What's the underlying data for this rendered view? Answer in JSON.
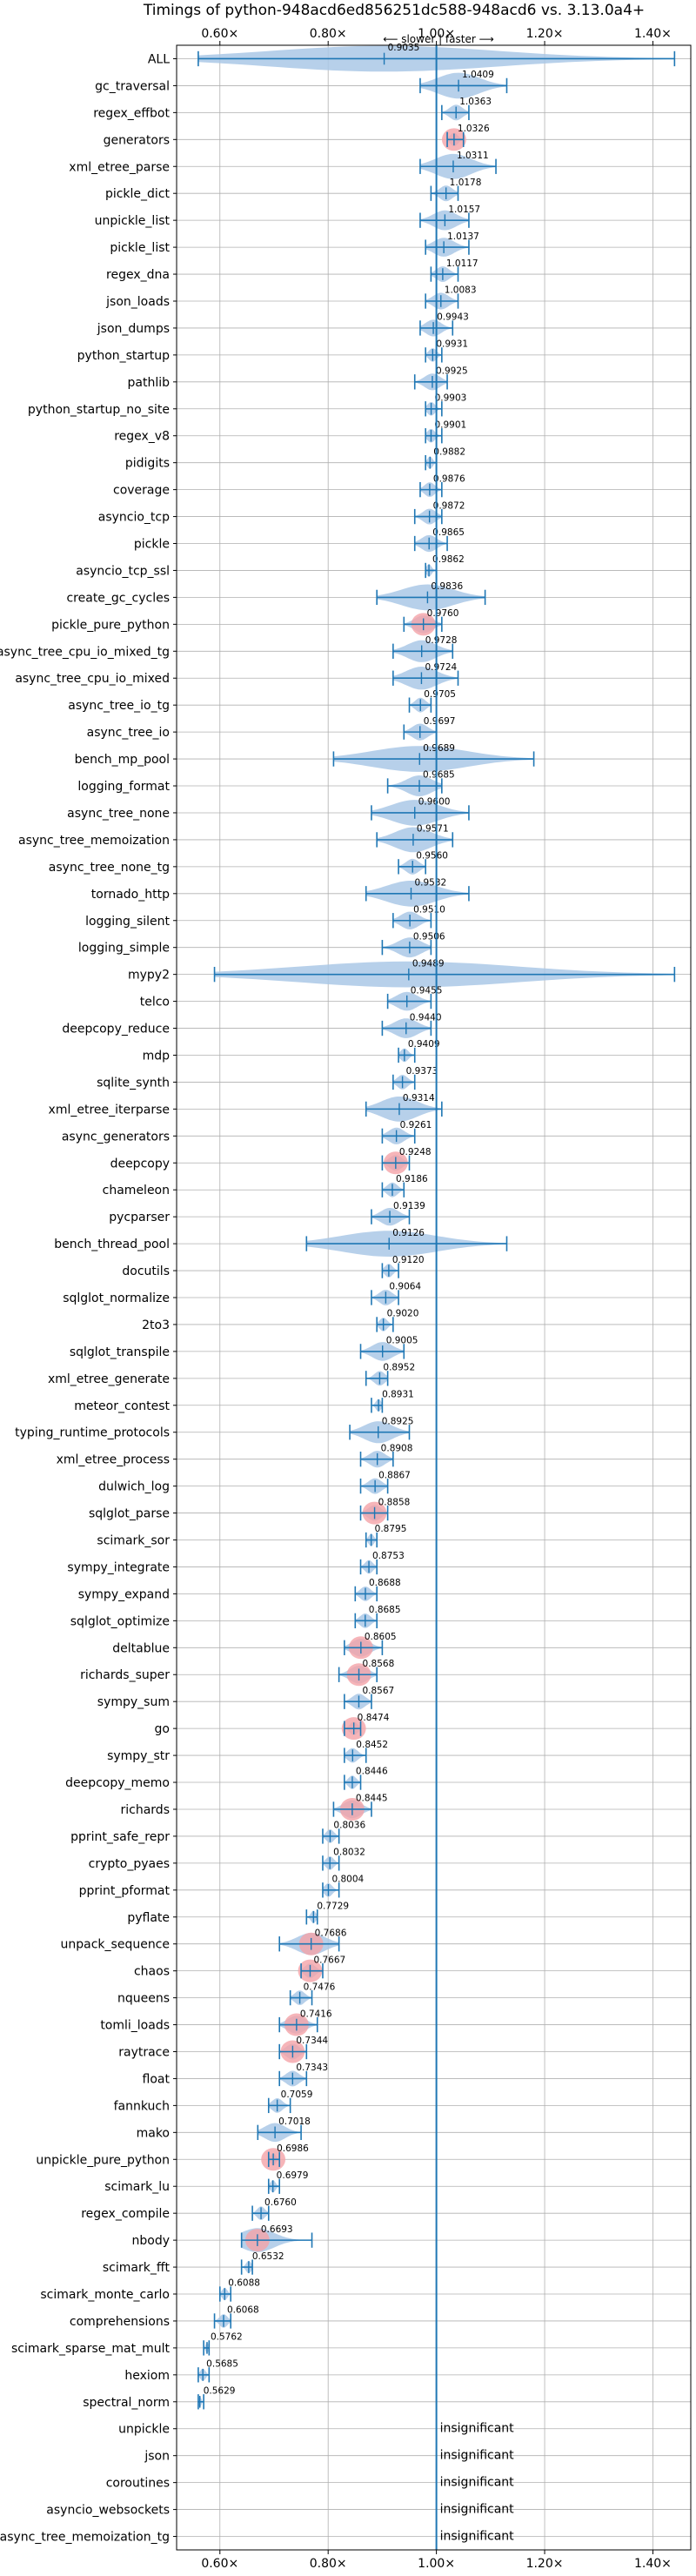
{
  "chart_data": {
    "type": "violin",
    "title": "Timings of python-948acd6ed856251dc588-948acd6 vs. 3.13.0a4+",
    "direction_label": "⟵ slower | faster ⟶",
    "xlim": [
      0.52,
      1.47
    ],
    "x_ticks": [
      0.6,
      0.8,
      1.0,
      1.2,
      1.4
    ],
    "x_tick_labels": [
      "0.60×",
      "0.80×",
      "1.00×",
      "1.20×",
      "1.40×"
    ],
    "reference_line": 1.0,
    "grid": true,
    "insignificant_label": "insignificant",
    "series": [
      {
        "name": "ALL",
        "value": 0.9035,
        "min": 0.56,
        "max": 1.44,
        "label": "0.9035"
      },
      {
        "name": "gc_traversal",
        "value": 1.0409,
        "min": 0.97,
        "max": 1.13,
        "label": "1.0409"
      },
      {
        "name": "regex_effbot",
        "value": 1.0363,
        "min": 1.01,
        "max": 1.06,
        "label": "1.0363"
      },
      {
        "name": "generators",
        "value": 1.0326,
        "min": 1.02,
        "max": 1.05,
        "label": "1.0326",
        "highlight": true
      },
      {
        "name": "xml_etree_parse",
        "value": 1.0311,
        "min": 0.97,
        "max": 1.11,
        "label": "1.0311"
      },
      {
        "name": "pickle_dict",
        "value": 1.0178,
        "min": 0.99,
        "max": 1.04,
        "label": "1.0178"
      },
      {
        "name": "unpickle_list",
        "value": 1.0157,
        "min": 0.97,
        "max": 1.06,
        "label": "1.0157"
      },
      {
        "name": "pickle_list",
        "value": 1.0137,
        "min": 0.98,
        "max": 1.06,
        "label": "1.0137"
      },
      {
        "name": "regex_dna",
        "value": 1.0117,
        "min": 0.99,
        "max": 1.04,
        "label": "1.0117"
      },
      {
        "name": "json_loads",
        "value": 1.0083,
        "min": 0.98,
        "max": 1.04,
        "label": "1.0083"
      },
      {
        "name": "json_dumps",
        "value": 0.9943,
        "min": 0.97,
        "max": 1.03,
        "label": "0.9943"
      },
      {
        "name": "python_startup",
        "value": 0.9931,
        "min": 0.98,
        "max": 1.01,
        "label": "0.9931"
      },
      {
        "name": "pathlib",
        "value": 0.9925,
        "min": 0.96,
        "max": 1.02,
        "label": "0.9925"
      },
      {
        "name": "python_startup_no_site",
        "value": 0.9903,
        "min": 0.98,
        "max": 1.01,
        "label": "0.9903"
      },
      {
        "name": "regex_v8",
        "value": 0.9901,
        "min": 0.98,
        "max": 1.01,
        "label": "0.9901"
      },
      {
        "name": "pidigits",
        "value": 0.9882,
        "min": 0.98,
        "max": 1.0,
        "label": "0.9882"
      },
      {
        "name": "coverage",
        "value": 0.9876,
        "min": 0.97,
        "max": 1.01,
        "label": "0.9876"
      },
      {
        "name": "asyncio_tcp",
        "value": 0.9872,
        "min": 0.96,
        "max": 1.01,
        "label": "0.9872"
      },
      {
        "name": "pickle",
        "value": 0.9865,
        "min": 0.96,
        "max": 1.02,
        "label": "0.9865"
      },
      {
        "name": "asyncio_tcp_ssl",
        "value": 0.9862,
        "min": 0.98,
        "max": 1.0,
        "label": "0.9862"
      },
      {
        "name": "create_gc_cycles",
        "value": 0.9836,
        "min": 0.89,
        "max": 1.09,
        "label": "0.9836"
      },
      {
        "name": "pickle_pure_python",
        "value": 0.976,
        "min": 0.94,
        "max": 1.01,
        "label": "0.9760",
        "highlight": true
      },
      {
        "name": "async_tree_cpu_io_mixed_tg",
        "value": 0.9728,
        "min": 0.92,
        "max": 1.03,
        "label": "0.9728"
      },
      {
        "name": "async_tree_cpu_io_mixed",
        "value": 0.9724,
        "min": 0.92,
        "max": 1.04,
        "label": "0.9724"
      },
      {
        "name": "async_tree_io_tg",
        "value": 0.9705,
        "min": 0.95,
        "max": 0.99,
        "label": "0.9705"
      },
      {
        "name": "async_tree_io",
        "value": 0.9697,
        "min": 0.94,
        "max": 1.0,
        "label": "0.9697"
      },
      {
        "name": "bench_mp_pool",
        "value": 0.9689,
        "min": 0.81,
        "max": 1.18,
        "label": "0.9689"
      },
      {
        "name": "logging_format",
        "value": 0.9685,
        "min": 0.91,
        "max": 1.01,
        "label": "0.9685"
      },
      {
        "name": "async_tree_none",
        "value": 0.96,
        "min": 0.88,
        "max": 1.06,
        "label": "0.9600"
      },
      {
        "name": "async_tree_memoization",
        "value": 0.9571,
        "min": 0.89,
        "max": 1.03,
        "label": "0.9571"
      },
      {
        "name": "async_tree_none_tg",
        "value": 0.956,
        "min": 0.93,
        "max": 0.98,
        "label": "0.9560"
      },
      {
        "name": "tornado_http",
        "value": 0.9532,
        "min": 0.87,
        "max": 1.06,
        "label": "0.9532"
      },
      {
        "name": "logging_silent",
        "value": 0.951,
        "min": 0.92,
        "max": 0.99,
        "label": "0.9510"
      },
      {
        "name": "logging_simple",
        "value": 0.9506,
        "min": 0.9,
        "max": 0.99,
        "label": "0.9506"
      },
      {
        "name": "mypy2",
        "value": 0.9489,
        "min": 0.59,
        "max": 1.44,
        "label": "0.9489"
      },
      {
        "name": "telco",
        "value": 0.9455,
        "min": 0.91,
        "max": 0.99,
        "label": "0.9455"
      },
      {
        "name": "deepcopy_reduce",
        "value": 0.944,
        "min": 0.9,
        "max": 0.99,
        "label": "0.9440"
      },
      {
        "name": "mdp",
        "value": 0.9409,
        "min": 0.93,
        "max": 0.96,
        "label": "0.9409"
      },
      {
        "name": "sqlite_synth",
        "value": 0.9373,
        "min": 0.92,
        "max": 0.96,
        "label": "0.9373"
      },
      {
        "name": "xml_etree_iterparse",
        "value": 0.9314,
        "min": 0.87,
        "max": 1.01,
        "label": "0.9314"
      },
      {
        "name": "async_generators",
        "value": 0.9261,
        "min": 0.9,
        "max": 0.96,
        "label": "0.9261"
      },
      {
        "name": "deepcopy",
        "value": 0.9248,
        "min": 0.9,
        "max": 0.95,
        "label": "0.9248",
        "highlight": true
      },
      {
        "name": "chameleon",
        "value": 0.9186,
        "min": 0.9,
        "max": 0.94,
        "label": "0.9186"
      },
      {
        "name": "pycparser",
        "value": 0.9139,
        "min": 0.88,
        "max": 0.95,
        "label": "0.9139"
      },
      {
        "name": "bench_thread_pool",
        "value": 0.9126,
        "min": 0.76,
        "max": 1.13,
        "label": "0.9126"
      },
      {
        "name": "docutils",
        "value": 0.912,
        "min": 0.9,
        "max": 0.93,
        "label": "0.9120"
      },
      {
        "name": "sqlglot_normalize",
        "value": 0.9064,
        "min": 0.88,
        "max": 0.93,
        "label": "0.9064"
      },
      {
        "name": "2to3",
        "value": 0.902,
        "min": 0.89,
        "max": 0.92,
        "label": "0.9020"
      },
      {
        "name": "sqlglot_transpile",
        "value": 0.9005,
        "min": 0.86,
        "max": 0.94,
        "label": "0.9005"
      },
      {
        "name": "xml_etree_generate",
        "value": 0.8952,
        "min": 0.87,
        "max": 0.91,
        "label": "0.8952"
      },
      {
        "name": "meteor_contest",
        "value": 0.8931,
        "min": 0.88,
        "max": 0.9,
        "label": "0.8931"
      },
      {
        "name": "typing_runtime_protocols",
        "value": 0.8925,
        "min": 0.84,
        "max": 0.95,
        "label": "0.8925"
      },
      {
        "name": "xml_etree_process",
        "value": 0.8908,
        "min": 0.86,
        "max": 0.92,
        "label": "0.8908"
      },
      {
        "name": "dulwich_log",
        "value": 0.8867,
        "min": 0.86,
        "max": 0.91,
        "label": "0.8867"
      },
      {
        "name": "sqlglot_parse",
        "value": 0.8858,
        "min": 0.86,
        "max": 0.91,
        "label": "0.8858",
        "highlight": true
      },
      {
        "name": "scimark_sor",
        "value": 0.8795,
        "min": 0.87,
        "max": 0.89,
        "label": "0.8795"
      },
      {
        "name": "sympy_integrate",
        "value": 0.8753,
        "min": 0.86,
        "max": 0.89,
        "label": "0.8753"
      },
      {
        "name": "sympy_expand",
        "value": 0.8688,
        "min": 0.85,
        "max": 0.89,
        "label": "0.8688"
      },
      {
        "name": "sqlglot_optimize",
        "value": 0.8685,
        "min": 0.85,
        "max": 0.89,
        "label": "0.8685"
      },
      {
        "name": "deltablue",
        "value": 0.8605,
        "min": 0.83,
        "max": 0.9,
        "label": "0.8605",
        "highlight": true
      },
      {
        "name": "richards_super",
        "value": 0.8568,
        "min": 0.82,
        "max": 0.89,
        "label": "0.8568",
        "highlight": true
      },
      {
        "name": "sympy_sum",
        "value": 0.8567,
        "min": 0.83,
        "max": 0.88,
        "label": "0.8567"
      },
      {
        "name": "go",
        "value": 0.8474,
        "min": 0.83,
        "max": 0.86,
        "label": "0.8474",
        "highlight": true
      },
      {
        "name": "sympy_str",
        "value": 0.8452,
        "min": 0.83,
        "max": 0.87,
        "label": "0.8452"
      },
      {
        "name": "deepcopy_memo",
        "value": 0.8446,
        "min": 0.83,
        "max": 0.86,
        "label": "0.8446"
      },
      {
        "name": "richards",
        "value": 0.8445,
        "min": 0.81,
        "max": 0.88,
        "label": "0.8445",
        "highlight": true
      },
      {
        "name": "pprint_safe_repr",
        "value": 0.8036,
        "min": 0.79,
        "max": 0.82,
        "label": "0.8036"
      },
      {
        "name": "crypto_pyaes",
        "value": 0.8032,
        "min": 0.79,
        "max": 0.82,
        "label": "0.8032"
      },
      {
        "name": "pprint_pformat",
        "value": 0.8004,
        "min": 0.79,
        "max": 0.82,
        "label": "0.8004"
      },
      {
        "name": "pyflate",
        "value": 0.7729,
        "min": 0.76,
        "max": 0.78,
        "label": "0.7729"
      },
      {
        "name": "unpack_sequence",
        "value": 0.7686,
        "min": 0.71,
        "max": 0.82,
        "label": "0.7686",
        "highlight": true
      },
      {
        "name": "chaos",
        "value": 0.7667,
        "min": 0.75,
        "max": 0.79,
        "label": "0.7667",
        "highlight": true
      },
      {
        "name": "nqueens",
        "value": 0.7476,
        "min": 0.73,
        "max": 0.77,
        "label": "0.7476"
      },
      {
        "name": "tomli_loads",
        "value": 0.7416,
        "min": 0.71,
        "max": 0.78,
        "label": "0.7416",
        "highlight": true
      },
      {
        "name": "raytrace",
        "value": 0.7344,
        "min": 0.71,
        "max": 0.76,
        "label": "0.7344",
        "highlight": true
      },
      {
        "name": "float",
        "value": 0.7343,
        "min": 0.71,
        "max": 0.76,
        "label": "0.7343"
      },
      {
        "name": "fannkuch",
        "value": 0.7059,
        "min": 0.69,
        "max": 0.73,
        "label": "0.7059"
      },
      {
        "name": "mako",
        "value": 0.7018,
        "min": 0.67,
        "max": 0.75,
        "label": "0.7018"
      },
      {
        "name": "unpickle_pure_python",
        "value": 0.6986,
        "min": 0.69,
        "max": 0.71,
        "label": "0.6986",
        "highlight": true
      },
      {
        "name": "scimark_lu",
        "value": 0.6979,
        "min": 0.69,
        "max": 0.71,
        "label": "0.6979"
      },
      {
        "name": "regex_compile",
        "value": 0.676,
        "min": 0.66,
        "max": 0.69,
        "label": "0.6760"
      },
      {
        "name": "nbody",
        "value": 0.6693,
        "min": 0.64,
        "max": 0.77,
        "label": "0.6693",
        "highlight": true
      },
      {
        "name": "scimark_fft",
        "value": 0.6532,
        "min": 0.64,
        "max": 0.66,
        "label": "0.6532"
      },
      {
        "name": "scimark_monte_carlo",
        "value": 0.6088,
        "min": 0.6,
        "max": 0.62,
        "label": "0.6088"
      },
      {
        "name": "comprehensions",
        "value": 0.6068,
        "min": 0.59,
        "max": 0.62,
        "label": "0.6068"
      },
      {
        "name": "scimark_sparse_mat_mult",
        "value": 0.5762,
        "min": 0.57,
        "max": 0.58,
        "label": "0.5762"
      },
      {
        "name": "hexiom",
        "value": 0.5685,
        "min": 0.56,
        "max": 0.58,
        "label": "0.5685"
      },
      {
        "name": "spectral_norm",
        "value": 0.5629,
        "min": 0.56,
        "max": 0.57,
        "label": "0.5629"
      },
      {
        "name": "unpickle",
        "insignificant": true
      },
      {
        "name": "json",
        "insignificant": true
      },
      {
        "name": "coroutines",
        "insignificant": true
      },
      {
        "name": "asyncio_websockets",
        "insignificant": true
      },
      {
        "name": "async_tree_memoization_tg",
        "insignificant": true
      }
    ]
  },
  "colors": {
    "violin": "#aac8e6",
    "line": "#1f77b4",
    "highlight": "#f4a3a8",
    "grid": "#b0b0b0",
    "axis": "#000000"
  }
}
